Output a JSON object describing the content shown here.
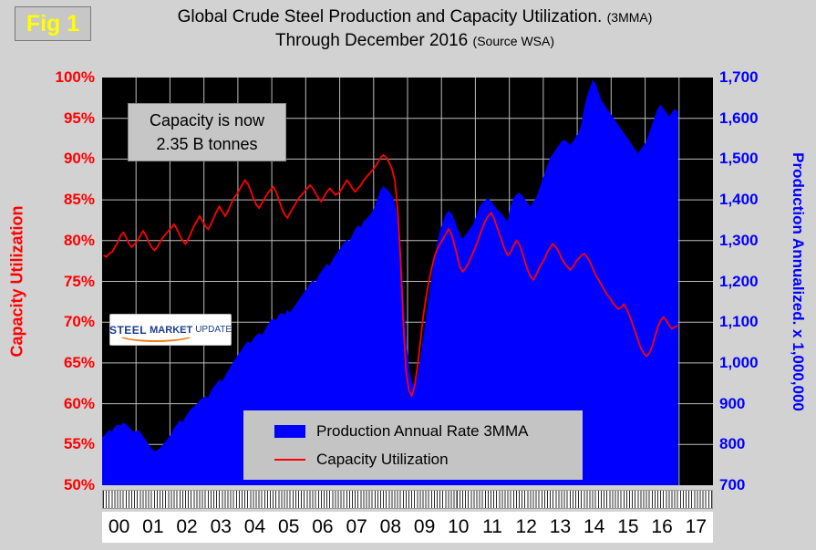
{
  "fig_label": "Fig 1",
  "title": {
    "line1_main": "Global Crude Steel Production and Capacity Utilization.",
    "line1_suffix": "(3MMA)",
    "line2_main": "Through December 2016",
    "line2_suffix": "(Source WSA)"
  },
  "annotation": {
    "line1": "Capacity is now",
    "line2": "2.35 B tonnes"
  },
  "logo": {
    "word1": "STEEL",
    "word2": "MARKET",
    "word3": "UPDATE"
  },
  "legend": {
    "production_label": "Production Annual Rate 3MMA",
    "utilization_label": "Capacity Utilization"
  },
  "axes": {
    "left_title": "Capacity Utilization",
    "right_title": "Production Annualized. x 1,000,000",
    "left_ticks": [
      "100%",
      "95%",
      "90%",
      "85%",
      "80%",
      "75%",
      "70%",
      "65%",
      "60%",
      "55%",
      "50%"
    ],
    "right_ticks": [
      "1,700",
      "1,600",
      "1,500",
      "1,400",
      "1,300",
      "1,200",
      "1,100",
      "1,000",
      "900",
      "800",
      "700"
    ],
    "x_ticks": [
      "00",
      "01",
      "02",
      "03",
      "04",
      "05",
      "06",
      "07",
      "08",
      "09",
      "10",
      "11",
      "12",
      "13",
      "14",
      "15",
      "16",
      "17"
    ]
  },
  "colors": {
    "production": "#0000ff",
    "utilization": "#ff0000",
    "fig_label": "#ffff00",
    "plot_background": "#000000",
    "gridline": "#bdbdbd"
  },
  "chart_data": {
    "type": "area",
    "title": "Global Crude Steel Production and Capacity Utilization (3MMA) Through December 2016",
    "source": "Source WSA",
    "frequency": "monthly",
    "x_start": "2000-01",
    "x_end": "2016-12",
    "x_axis_total_months": 216,
    "left_axis_label": "Capacity Utilization",
    "left_axis_range": [
      50,
      100
    ],
    "right_axis_label": "Production Annualized. x 1,000,000",
    "right_axis_range": [
      700,
      1700
    ],
    "grid": true,
    "legend_position": "inside-bottom-center",
    "series": [
      {
        "name": "Production Annual Rate 3MMA",
        "axis": "right",
        "style": "filled-area",
        "unit": "million tonnes annualized",
        "values": [
          818,
          826,
          835,
          830,
          842,
          848,
          845,
          852,
          848,
          840,
          834,
          828,
          835,
          828,
          818,
          808,
          798,
          788,
          782,
          785,
          790,
          798,
          806,
          815,
          825,
          838,
          848,
          858,
          852,
          866,
          876,
          886,
          892,
          898,
          906,
          912,
          918,
          912,
          928,
          940,
          948,
          958,
          952,
          966,
          978,
          990,
          1002,
          1012,
          1022,
          1032,
          1042,
          1052,
          1046,
          1058,
          1066,
          1072,
          1066,
          1078,
          1090,
          1102,
          1108,
          1102,
          1116,
          1122,
          1116,
          1128,
          1122,
          1132,
          1142,
          1152,
          1162,
          1172,
          1182,
          1192,
          1202,
          1196,
          1212,
          1222,
          1232,
          1242,
          1236,
          1252,
          1262,
          1272,
          1282,
          1292,
          1302,
          1296,
          1312,
          1326,
          1336,
          1330,
          1346,
          1352,
          1360,
          1368,
          1382,
          1402,
          1422,
          1432,
          1426,
          1418,
          1408,
          1388,
          1348,
          1278,
          1148,
          1048,
          982,
          952,
          942,
          962,
          1002,
          1052,
          1102,
          1152,
          1202,
          1252,
          1292,
          1322,
          1342,
          1362,
          1372,
          1366,
          1350,
          1330,
          1312,
          1302,
          1312,
          1322,
          1332,
          1342,
          1362,
          1382,
          1392,
          1398,
          1402,
          1396,
          1386,
          1376,
          1370,
          1362,
          1352,
          1346,
          1382,
          1402,
          1412,
          1416,
          1410,
          1400,
          1390,
          1380,
          1396,
          1402,
          1422,
          1442,
          1462,
          1482,
          1502,
          1512,
          1522,
          1532,
          1542,
          1546,
          1540,
          1532,
          1542,
          1552,
          1562,
          1582,
          1622,
          1652,
          1672,
          1692,
          1682,
          1662,
          1642,
          1632,
          1622,
          1612,
          1602,
          1592,
          1582,
          1572,
          1562,
          1552,
          1542,
          1532,
          1522,
          1512,
          1522,
          1532,
          1542,
          1562,
          1582,
          1602,
          1622,
          1632,
          1622,
          1612,
          1602,
          1612,
          1622,
          1615
        ]
      },
      {
        "name": "Capacity Utilization",
        "axis": "left",
        "style": "line",
        "unit": "%",
        "values": [
          78.2,
          78.0,
          78.4,
          78.6,
          79.2,
          79.8,
          80.6,
          81.0,
          80.4,
          79.6,
          79.2,
          79.6,
          80.0,
          80.6,
          81.2,
          80.6,
          79.8,
          79.2,
          78.8,
          79.2,
          79.8,
          80.4,
          80.8,
          81.2,
          81.6,
          82.0,
          81.4,
          80.6,
          80.0,
          79.6,
          80.2,
          81.0,
          81.8,
          82.4,
          83.0,
          82.4,
          81.8,
          81.4,
          82.0,
          82.8,
          83.6,
          84.2,
          83.6,
          83.0,
          83.6,
          84.4,
          85.2,
          85.6,
          86.2,
          86.8,
          87.4,
          87.0,
          86.2,
          85.2,
          84.4,
          84.0,
          84.6,
          85.2,
          85.8,
          86.2,
          86.6,
          86.0,
          85.0,
          84.0,
          83.2,
          82.8,
          83.4,
          84.0,
          84.6,
          85.2,
          85.6,
          86.0,
          86.4,
          86.8,
          86.4,
          85.8,
          85.2,
          84.8,
          85.4,
          86.0,
          86.4,
          86.0,
          85.6,
          85.8,
          86.2,
          86.8,
          87.4,
          87.0,
          86.4,
          86.0,
          86.4,
          86.8,
          87.4,
          87.8,
          88.2,
          88.6,
          89.0,
          89.6,
          90.2,
          90.5,
          90.2,
          89.6,
          88.8,
          87.4,
          84.0,
          78.0,
          70.0,
          64.0,
          61.6,
          61.0,
          62.2,
          64.6,
          67.6,
          70.6,
          73.0,
          75.0,
          76.6,
          78.0,
          79.0,
          79.6,
          80.2,
          80.8,
          81.4,
          80.8,
          79.6,
          78.2,
          76.8,
          76.2,
          76.6,
          77.2,
          78.0,
          78.8,
          79.6,
          80.6,
          81.6,
          82.4,
          83.0,
          83.4,
          82.8,
          81.8,
          80.8,
          79.8,
          78.8,
          78.2,
          78.6,
          79.4,
          80.0,
          79.6,
          78.6,
          77.4,
          76.4,
          75.6,
          75.2,
          75.8,
          76.6,
          77.2,
          77.8,
          78.6,
          79.2,
          79.6,
          79.2,
          78.6,
          77.8,
          77.2,
          76.8,
          76.4,
          76.8,
          77.4,
          77.8,
          78.2,
          78.4,
          78.0,
          77.4,
          76.6,
          75.8,
          75.2,
          74.6,
          74.0,
          73.4,
          73.0,
          72.4,
          72.0,
          71.6,
          71.8,
          72.2,
          71.6,
          70.8,
          69.8,
          68.8,
          67.8,
          66.8,
          66.2,
          65.8,
          66.2,
          67.0,
          68.2,
          69.4,
          70.2,
          70.6,
          70.2,
          69.6,
          69.2,
          69.4,
          69.6
        ]
      }
    ]
  }
}
